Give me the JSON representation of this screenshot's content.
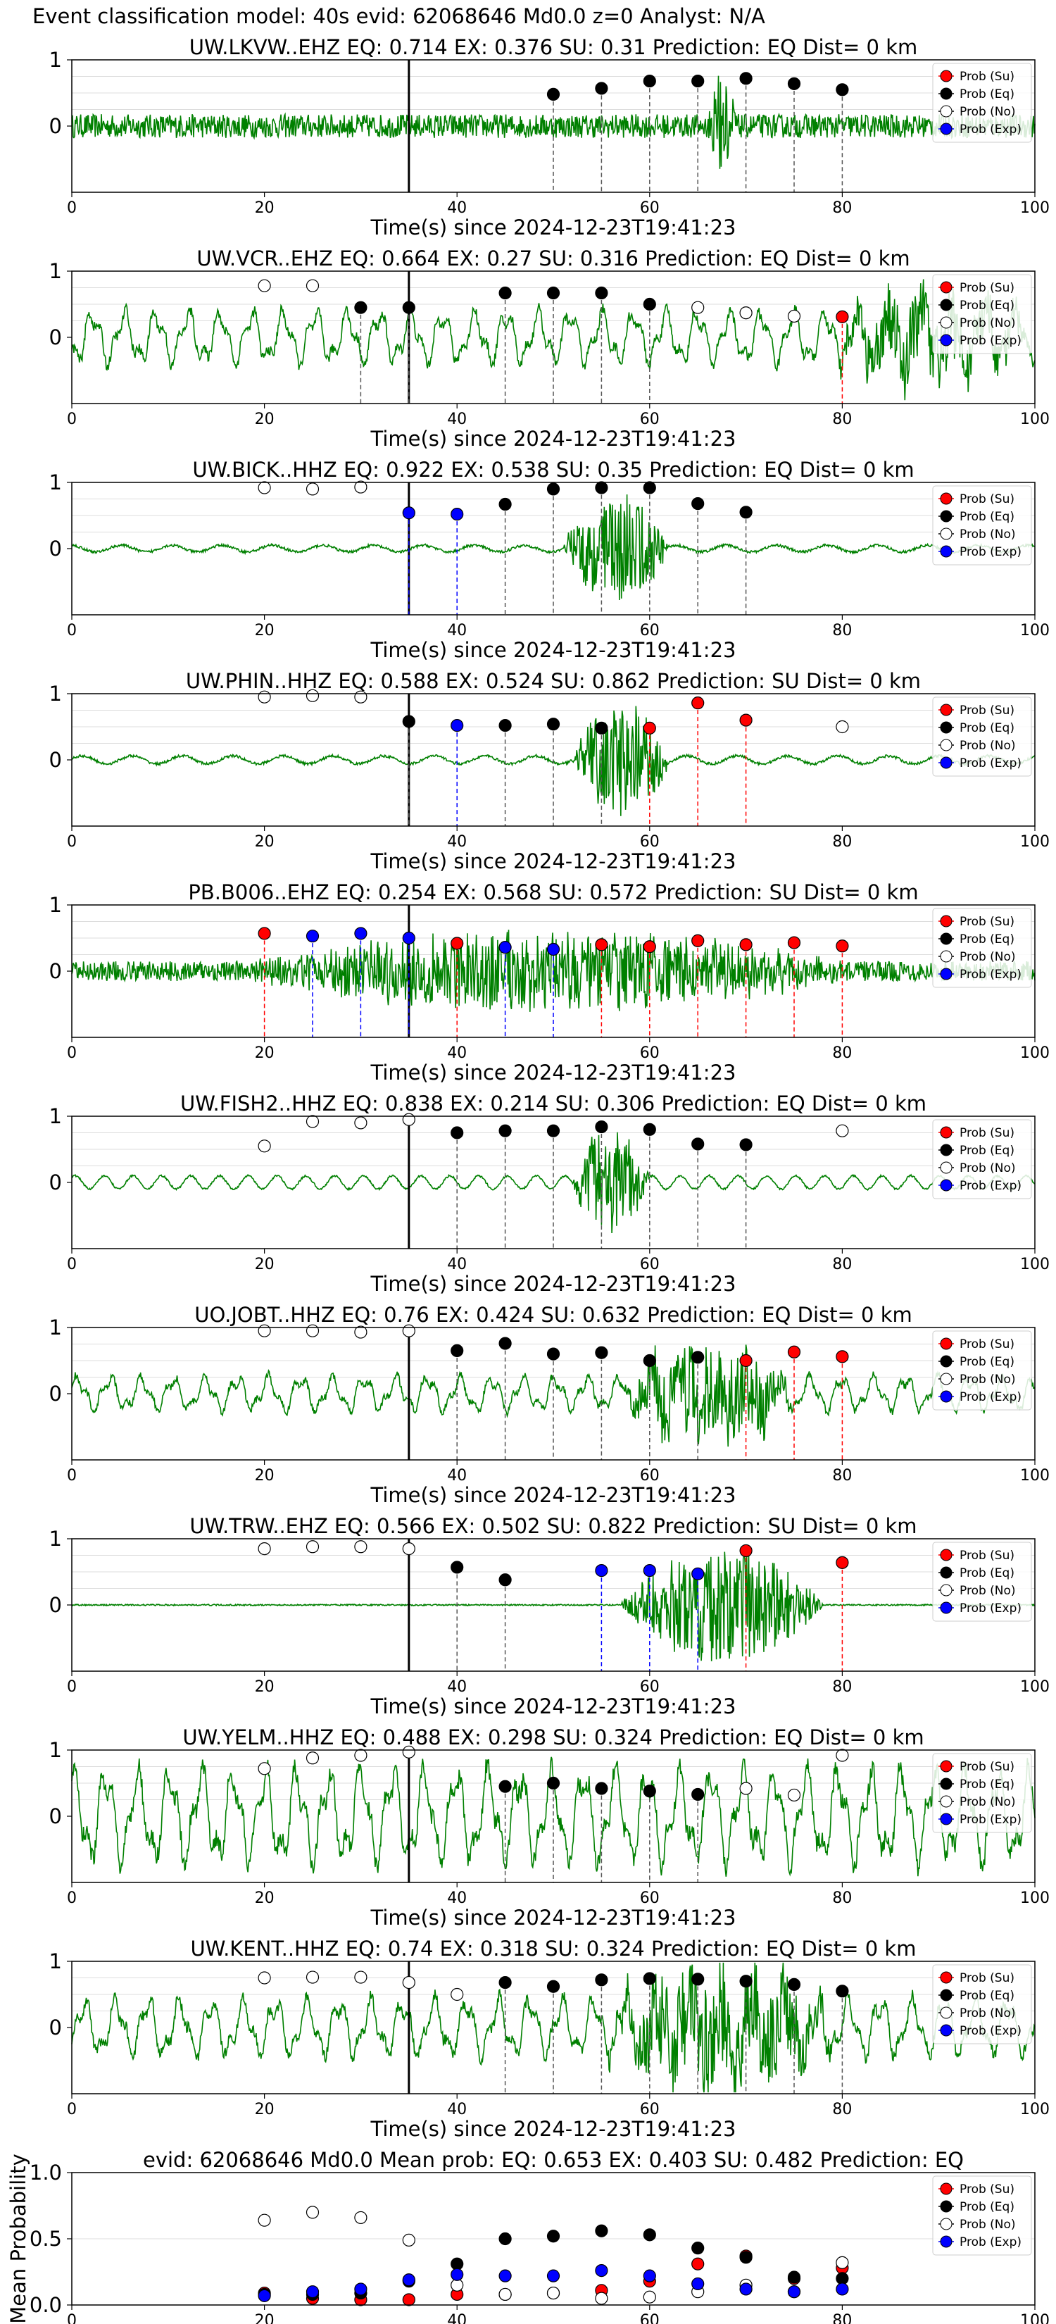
{
  "suptitle": "Event classification model: 40s evid: 62068646 Md0.0 z=0 Analyst: N/A",
  "xlabel": "Time(s) since 2024-12-23T19:41:23",
  "xticks": [
    0,
    20,
    40,
    60,
    80,
    100
  ],
  "yticks": [
    0,
    1
  ],
  "mean_ylabel": "Mean Probability",
  "mean_yticks": [
    "0.0",
    "0.5",
    "1.0"
  ],
  "legend_labels": [
    "Prob (Su)",
    "Prob (Eq)",
    "Prob (No)",
    "Prob (Exp)"
  ],
  "colors": {
    "su": "#ff0000",
    "eq": "#000000",
    "no": "#ffffff",
    "exp": "#0000ff",
    "wave": "#008000",
    "grid": "#dddddd"
  },
  "chart_data": [
    {
      "type": "scatter",
      "title": "UW.LKVW..EHZ   EQ: 0.714  EX: 0.376  SU: 0.31   Prediction: EQ    Dist= 0 km",
      "arrival": 35,
      "wave_style": "noisy",
      "burst": [
        66,
        69
      ],
      "burst_amp": 0.9,
      "base_amp": 0.18,
      "xlim": [
        0,
        100
      ],
      "ylim": [
        -1,
        1
      ],
      "points": [
        {
          "x": 50,
          "y": 0.48,
          "c": "eq"
        },
        {
          "x": 55,
          "y": 0.57,
          "c": "eq"
        },
        {
          "x": 60,
          "y": 0.68,
          "c": "eq"
        },
        {
          "x": 65,
          "y": 0.68,
          "c": "eq"
        },
        {
          "x": 70,
          "y": 0.72,
          "c": "eq"
        },
        {
          "x": 75,
          "y": 0.64,
          "c": "eq"
        },
        {
          "x": 80,
          "y": 0.55,
          "c": "eq"
        }
      ]
    },
    {
      "type": "scatter",
      "title": "UW.VCR..EHZ   EQ: 0.664  EX: 0.27  SU: 0.316   Prediction: EQ    Dist= 0 km",
      "arrival": 35,
      "wave_style": "wavy",
      "burst": [
        78,
        100
      ],
      "burst_amp": 0.55,
      "base_amp": 0.45,
      "xlim": [
        0,
        100
      ],
      "ylim": [
        -1,
        1
      ],
      "points": [
        {
          "x": 20,
          "y": 0.78,
          "c": "no"
        },
        {
          "x": 25,
          "y": 0.78,
          "c": "no"
        },
        {
          "x": 30,
          "y": 0.45,
          "c": "eq"
        },
        {
          "x": 35,
          "y": 0.45,
          "c": "eq"
        },
        {
          "x": 45,
          "y": 0.67,
          "c": "eq"
        },
        {
          "x": 50,
          "y": 0.67,
          "c": "eq"
        },
        {
          "x": 55,
          "y": 0.67,
          "c": "eq"
        },
        {
          "x": 60,
          "y": 0.5,
          "c": "eq"
        },
        {
          "x": 65,
          "y": 0.45,
          "c": "no"
        },
        {
          "x": 70,
          "y": 0.37,
          "c": "no"
        },
        {
          "x": 75,
          "y": 0.32,
          "c": "no"
        },
        {
          "x": 80,
          "y": 0.31,
          "c": "su"
        }
      ]
    },
    {
      "type": "scatter",
      "title": "UW.BICK..HHZ   EQ: 0.922  EX: 0.538  SU: 0.35   Prediction: EQ    Dist= 0 km",
      "arrival": 35,
      "wave_style": "quiet",
      "burst": [
        51,
        62
      ],
      "burst_amp": 0.85,
      "base_amp": 0.05,
      "xlim": [
        0,
        100
      ],
      "ylim": [
        -1,
        1
      ],
      "points": [
        {
          "x": 20,
          "y": 0.92,
          "c": "no"
        },
        {
          "x": 25,
          "y": 0.9,
          "c": "no"
        },
        {
          "x": 30,
          "y": 0.93,
          "c": "no"
        },
        {
          "x": 35,
          "y": 0.54,
          "c": "exp"
        },
        {
          "x": 40,
          "y": 0.52,
          "c": "exp"
        },
        {
          "x": 45,
          "y": 0.67,
          "c": "eq"
        },
        {
          "x": 50,
          "y": 0.9,
          "c": "eq"
        },
        {
          "x": 55,
          "y": 0.92,
          "c": "eq"
        },
        {
          "x": 60,
          "y": 0.92,
          "c": "eq"
        },
        {
          "x": 65,
          "y": 0.68,
          "c": "eq"
        },
        {
          "x": 70,
          "y": 0.55,
          "c": "eq"
        }
      ]
    },
    {
      "type": "scatter",
      "title": "UW.PHIN..HHZ   EQ: 0.588  EX: 0.524  SU: 0.862   Prediction: SU    Dist= 0 km",
      "arrival": 35,
      "wave_style": "quiet",
      "burst": [
        52,
        62
      ],
      "burst_amp": 0.85,
      "base_amp": 0.06,
      "xlim": [
        0,
        100
      ],
      "ylim": [
        -1,
        1
      ],
      "points": [
        {
          "x": 20,
          "y": 0.95,
          "c": "no"
        },
        {
          "x": 25,
          "y": 0.97,
          "c": "no"
        },
        {
          "x": 30,
          "y": 0.95,
          "c": "no"
        },
        {
          "x": 35,
          "y": 0.58,
          "c": "eq"
        },
        {
          "x": 40,
          "y": 0.52,
          "c": "exp"
        },
        {
          "x": 45,
          "y": 0.52,
          "c": "eq"
        },
        {
          "x": 50,
          "y": 0.54,
          "c": "eq"
        },
        {
          "x": 55,
          "y": 0.48,
          "c": "eq"
        },
        {
          "x": 60,
          "y": 0.48,
          "c": "su"
        },
        {
          "x": 65,
          "y": 0.86,
          "c": "su"
        },
        {
          "x": 70,
          "y": 0.6,
          "c": "su"
        },
        {
          "x": 80,
          "y": 0.5,
          "c": "no"
        }
      ]
    },
    {
      "type": "scatter",
      "title": "PB.B006..EHZ   EQ: 0.254  EX: 0.568  SU: 0.572   Prediction: SU    Dist= 0 km",
      "arrival": 35,
      "wave_style": "noisy",
      "burst": [
        18,
        80
      ],
      "burst_amp": 0.55,
      "base_amp": 0.15,
      "xlim": [
        0,
        100
      ],
      "ylim": [
        -1,
        1
      ],
      "points": [
        {
          "x": 20,
          "y": 0.57,
          "c": "su"
        },
        {
          "x": 25,
          "y": 0.53,
          "c": "exp"
        },
        {
          "x": 30,
          "y": 0.57,
          "c": "exp"
        },
        {
          "x": 35,
          "y": 0.5,
          "c": "exp"
        },
        {
          "x": 40,
          "y": 0.42,
          "c": "su"
        },
        {
          "x": 45,
          "y": 0.36,
          "c": "exp"
        },
        {
          "x": 50,
          "y": 0.33,
          "c": "exp"
        },
        {
          "x": 55,
          "y": 0.4,
          "c": "su"
        },
        {
          "x": 60,
          "y": 0.37,
          "c": "su"
        },
        {
          "x": 65,
          "y": 0.46,
          "c": "su"
        },
        {
          "x": 70,
          "y": 0.4,
          "c": "su"
        },
        {
          "x": 75,
          "y": 0.43,
          "c": "su"
        },
        {
          "x": 80,
          "y": 0.38,
          "c": "su"
        }
      ]
    },
    {
      "type": "scatter",
      "title": "UW.FISH2..HHZ   EQ: 0.838  EX: 0.214  SU: 0.306   Prediction: EQ    Dist= 0 km",
      "arrival": 35,
      "wave_style": "smooth",
      "burst": [
        52,
        60
      ],
      "burst_amp": 0.8,
      "base_amp": 0.1,
      "xlim": [
        0,
        100
      ],
      "ylim": [
        -1,
        1
      ],
      "points": [
        {
          "x": 20,
          "y": 0.55,
          "c": "no"
        },
        {
          "x": 25,
          "y": 0.92,
          "c": "no"
        },
        {
          "x": 30,
          "y": 0.9,
          "c": "no"
        },
        {
          "x": 35,
          "y": 0.95,
          "c": "no"
        },
        {
          "x": 40,
          "y": 0.75,
          "c": "eq"
        },
        {
          "x": 45,
          "y": 0.78,
          "c": "eq"
        },
        {
          "x": 50,
          "y": 0.78,
          "c": "eq"
        },
        {
          "x": 55,
          "y": 0.84,
          "c": "eq"
        },
        {
          "x": 60,
          "y": 0.8,
          "c": "eq"
        },
        {
          "x": 65,
          "y": 0.58,
          "c": "eq"
        },
        {
          "x": 70,
          "y": 0.57,
          "c": "eq"
        },
        {
          "x": 80,
          "y": 0.78,
          "c": "no"
        }
      ]
    },
    {
      "type": "scatter",
      "title": "UO.JOBT..HHZ   EQ: 0.76  EX: 0.424  SU: 0.632   Prediction: EQ    Dist= 0 km",
      "arrival": 35,
      "wave_style": "wavy",
      "burst": [
        57,
        75
      ],
      "burst_amp": 0.75,
      "base_amp": 0.3,
      "xlim": [
        0,
        100
      ],
      "ylim": [
        -1,
        1
      ],
      "points": [
        {
          "x": 20,
          "y": 0.95,
          "c": "no"
        },
        {
          "x": 25,
          "y": 0.95,
          "c": "no"
        },
        {
          "x": 30,
          "y": 0.93,
          "c": "no"
        },
        {
          "x": 35,
          "y": 0.95,
          "c": "no"
        },
        {
          "x": 40,
          "y": 0.65,
          "c": "eq"
        },
        {
          "x": 45,
          "y": 0.76,
          "c": "eq"
        },
        {
          "x": 50,
          "y": 0.6,
          "c": "eq"
        },
        {
          "x": 55,
          "y": 0.62,
          "c": "eq"
        },
        {
          "x": 60,
          "y": 0.5,
          "c": "eq"
        },
        {
          "x": 65,
          "y": 0.55,
          "c": "eq"
        },
        {
          "x": 70,
          "y": 0.5,
          "c": "su"
        },
        {
          "x": 75,
          "y": 0.63,
          "c": "su"
        },
        {
          "x": 80,
          "y": 0.56,
          "c": "su"
        }
      ]
    },
    {
      "type": "scatter",
      "title": "UW.TRW..EHZ   EQ: 0.566  EX: 0.502  SU: 0.822   Prediction: SU    Dist= 0 km",
      "arrival": 35,
      "wave_style": "flat",
      "burst": [
        57,
        78
      ],
      "burst_amp": 0.9,
      "base_amp": 0.01,
      "xlim": [
        0,
        100
      ],
      "ylim": [
        -1,
        1
      ],
      "points": [
        {
          "x": 20,
          "y": 0.85,
          "c": "no"
        },
        {
          "x": 25,
          "y": 0.88,
          "c": "no"
        },
        {
          "x": 30,
          "y": 0.88,
          "c": "no"
        },
        {
          "x": 35,
          "y": 0.85,
          "c": "no"
        },
        {
          "x": 40,
          "y": 0.57,
          "c": "eq"
        },
        {
          "x": 45,
          "y": 0.38,
          "c": "eq"
        },
        {
          "x": 55,
          "y": 0.52,
          "c": "exp"
        },
        {
          "x": 60,
          "y": 0.52,
          "c": "exp"
        },
        {
          "x": 65,
          "y": 0.47,
          "c": "exp"
        },
        {
          "x": 70,
          "y": 0.82,
          "c": "su"
        },
        {
          "x": 80,
          "y": 0.64,
          "c": "su"
        }
      ]
    },
    {
      "type": "scatter",
      "title": "UW.YELM..HHZ   EQ: 0.488  EX: 0.298  SU: 0.324   Prediction: EQ    Dist= 0 km",
      "arrival": 35,
      "wave_style": "wavy",
      "burst": [
        0,
        0
      ],
      "burst_amp": 0.0,
      "base_amp": 0.8,
      "xlim": [
        0,
        100
      ],
      "ylim": [
        -1,
        1
      ],
      "points": [
        {
          "x": 20,
          "y": 0.72,
          "c": "no"
        },
        {
          "x": 25,
          "y": 0.88,
          "c": "no"
        },
        {
          "x": 30,
          "y": 0.92,
          "c": "no"
        },
        {
          "x": 35,
          "y": 0.97,
          "c": "no"
        },
        {
          "x": 45,
          "y": 0.45,
          "c": "eq"
        },
        {
          "x": 50,
          "y": 0.5,
          "c": "eq"
        },
        {
          "x": 55,
          "y": 0.42,
          "c": "eq"
        },
        {
          "x": 60,
          "y": 0.38,
          "c": "eq"
        },
        {
          "x": 65,
          "y": 0.33,
          "c": "eq"
        },
        {
          "x": 70,
          "y": 0.42,
          "c": "no"
        },
        {
          "x": 75,
          "y": 0.32,
          "c": "no"
        },
        {
          "x": 80,
          "y": 0.92,
          "c": "no"
        }
      ]
    },
    {
      "type": "scatter",
      "title": "UW.KENT..HHZ   EQ: 0.74  EX: 0.318  SU: 0.324   Prediction: EQ    Dist= 0 km",
      "arrival": 35,
      "wave_style": "wavy",
      "burst": [
        55,
        80
      ],
      "burst_amp": 0.8,
      "base_amp": 0.5,
      "xlim": [
        0,
        100
      ],
      "ylim": [
        -1,
        1
      ],
      "points": [
        {
          "x": 20,
          "y": 0.75,
          "c": "no"
        },
        {
          "x": 25,
          "y": 0.76,
          "c": "no"
        },
        {
          "x": 30,
          "y": 0.76,
          "c": "no"
        },
        {
          "x": 35,
          "y": 0.68,
          "c": "no"
        },
        {
          "x": 40,
          "y": 0.5,
          "c": "no"
        },
        {
          "x": 45,
          "y": 0.68,
          "c": "eq"
        },
        {
          "x": 50,
          "y": 0.62,
          "c": "eq"
        },
        {
          "x": 55,
          "y": 0.72,
          "c": "eq"
        },
        {
          "x": 60,
          "y": 0.74,
          "c": "eq"
        },
        {
          "x": 65,
          "y": 0.73,
          "c": "eq"
        },
        {
          "x": 70,
          "y": 0.7,
          "c": "eq"
        },
        {
          "x": 75,
          "y": 0.65,
          "c": "eq"
        },
        {
          "x": 80,
          "y": 0.55,
          "c": "eq"
        }
      ]
    },
    {
      "type": "scatter",
      "title": "evid: 62068646  Md0.0   Mean prob:   EQ: 0.653  EX: 0.403  SU: 0.482   Prediction: EQ",
      "xlim": [
        0,
        100
      ],
      "ylim": [
        0,
        1
      ],
      "ylabel": "Mean Probability",
      "series": [
        {
          "name": "Prob (Su)",
          "c": "su",
          "x": [
            20,
            25,
            30,
            35,
            40,
            45,
            50,
            55,
            60,
            65,
            70,
            75,
            80
          ],
          "y": [
            0.09,
            0.05,
            0.04,
            0.04,
            0.08,
            0.08,
            0.09,
            0.11,
            0.18,
            0.31,
            0.37,
            0.2,
            0.28
          ]
        },
        {
          "name": "Prob (Eq)",
          "c": "eq",
          "x": [
            20,
            25,
            30,
            35,
            40,
            45,
            50,
            55,
            60,
            65,
            70,
            75,
            80
          ],
          "y": [
            0.08,
            0.08,
            0.09,
            0.18,
            0.31,
            0.5,
            0.52,
            0.56,
            0.53,
            0.43,
            0.36,
            0.21,
            0.2
          ]
        },
        {
          "name": "Prob (No)",
          "c": "no",
          "x": [
            20,
            25,
            30,
            35,
            40,
            45,
            50,
            55,
            60,
            65,
            70,
            75,
            80
          ],
          "y": [
            0.64,
            0.7,
            0.66,
            0.49,
            0.15,
            0.08,
            0.09,
            0.05,
            0.06,
            0.1,
            0.15,
            0.1,
            0.32
          ]
        },
        {
          "name": "Prob (Exp)",
          "c": "exp",
          "x": [
            20,
            25,
            30,
            35,
            40,
            45,
            50,
            55,
            60,
            65,
            70,
            75,
            80
          ],
          "y": [
            0.07,
            0.1,
            0.12,
            0.19,
            0.23,
            0.22,
            0.22,
            0.26,
            0.22,
            0.16,
            0.12,
            0.1,
            0.12
          ]
        }
      ]
    }
  ]
}
